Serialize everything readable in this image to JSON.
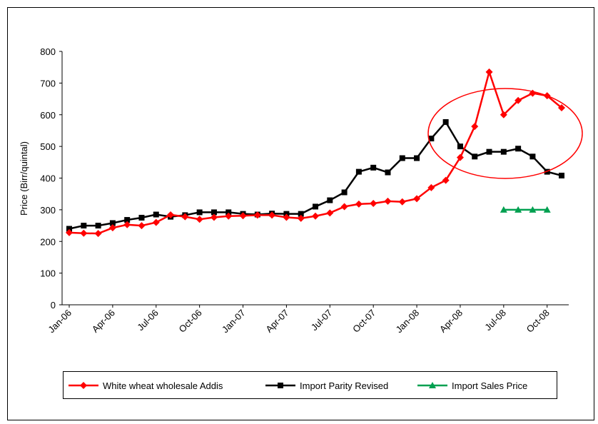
{
  "chart_data": {
    "type": "line",
    "y_label": "Price (Birr/quintal)",
    "categories": [
      "Jan-06",
      null,
      null,
      "Apr-06",
      null,
      null,
      "Jul-06",
      null,
      null,
      "Oct-06",
      null,
      null,
      "Jan-07",
      null,
      null,
      "Apr-07",
      null,
      null,
      "Jul-07",
      null,
      null,
      "Oct-07",
      null,
      null,
      "Jan-08",
      null,
      null,
      "Apr-08",
      null,
      null,
      "Jul-08",
      null,
      null,
      "Oct-08",
      null
    ],
    "series": [
      {
        "name": "White wheat wholesale Addis",
        "color": "#ff0000",
        "marker": "diamond",
        "values": [
          228,
          226,
          225,
          243,
          253,
          250,
          260,
          284,
          278,
          270,
          276,
          280,
          281,
          283,
          283,
          276,
          273,
          280,
          290,
          310,
          318,
          320,
          327,
          325,
          335,
          370,
          393,
          465,
          563,
          735,
          600,
          645,
          668,
          660,
          622
        ]
      },
      {
        "name": "Import Parity Revised",
        "color": "#000000",
        "marker": "square",
        "values": [
          240,
          250,
          250,
          258,
          268,
          275,
          285,
          278,
          283,
          292,
          292,
          292,
          287,
          285,
          288,
          287,
          287,
          310,
          330,
          355,
          420,
          433,
          418,
          463,
          463,
          525,
          577,
          500,
          468,
          483,
          483,
          493,
          468,
          420,
          408
        ]
      },
      {
        "name": "Import Sales Price",
        "color": "#00a050",
        "marker": "triangle",
        "values": [
          null,
          null,
          null,
          null,
          null,
          null,
          null,
          null,
          null,
          null,
          null,
          null,
          null,
          null,
          null,
          null,
          null,
          null,
          null,
          null,
          null,
          null,
          null,
          null,
          null,
          null,
          null,
          null,
          null,
          null,
          300,
          300,
          300,
          300,
          null
        ]
      }
    ],
    "ylim": [
      0,
      800
    ],
    "yticks": [
      0,
      100,
      200,
      300,
      400,
      500,
      600,
      700,
      800
    ]
  }
}
